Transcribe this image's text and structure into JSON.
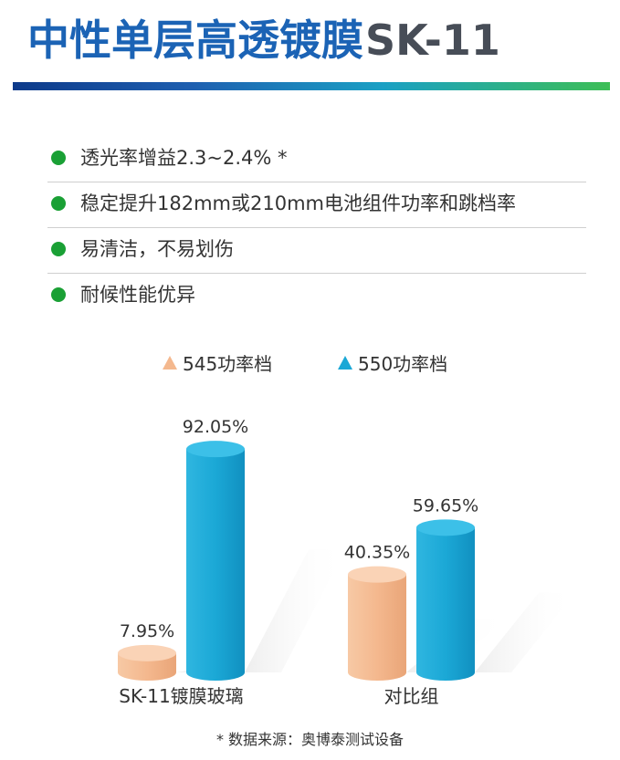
{
  "header": {
    "title_cn": "中性单层高透镀膜",
    "title_code": "SK-11"
  },
  "features": [
    "透光率增益2.3~2.4% *",
    "稳定提升182mm或210mm电池组件功率和跳档率",
    "易清洁，不易划伤",
    "耐候性能优异"
  ],
  "colors": {
    "title_blue": "#1b63b5",
    "bullet_green": "#1aa035",
    "series_545": "#f4b88e",
    "series_550": "#1ba8d6"
  },
  "chart_data": {
    "type": "bar",
    "categories": [
      "SK-11镀膜玻璃",
      "对比组"
    ],
    "series": [
      {
        "name": "545功率档",
        "values": [
          7.95,
          40.35
        ],
        "labels": [
          "7.95%",
          "40.35%"
        ],
        "color": "#f4b88e"
      },
      {
        "name": "550功率档",
        "values": [
          92.05,
          59.65
        ],
        "labels": [
          "92.05%",
          "59.65%"
        ],
        "color": "#1ba8d6"
      }
    ],
    "unit": "%",
    "ylim": [
      0,
      100
    ],
    "legend": "top",
    "grid": false,
    "title": "",
    "xlabel": "",
    "ylabel": ""
  },
  "footnote": "* 数据来源：奥博泰测试设备"
}
